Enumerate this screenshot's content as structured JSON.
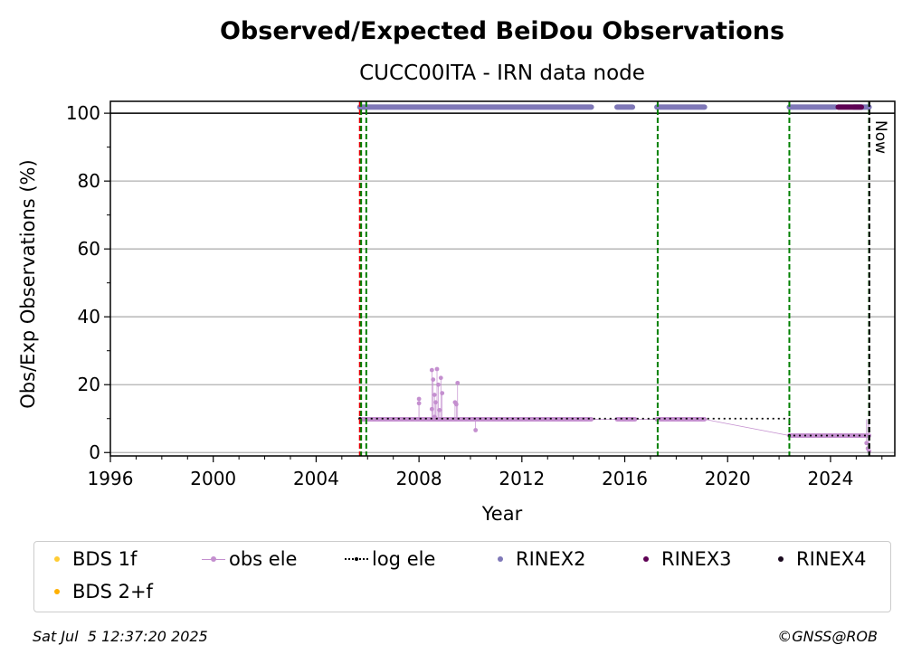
{
  "chart_data": {
    "type": "scatter",
    "title": "Observed/Expected BeiDou Observations",
    "subtitle": "CUCC00ITA - IRN data node",
    "xlabel": "Year",
    "ylabel": "Obs/Exp Observations (%)",
    "xlim": [
      1996.0,
      2026.5
    ],
    "ylim": [
      -1,
      103.5
    ],
    "xticks": [
      1996,
      2000,
      2004,
      2008,
      2012,
      2016,
      2020,
      2024
    ],
    "yticks": [
      0,
      20,
      40,
      60,
      80,
      100
    ],
    "grid": "horizontal",
    "now_label": "Now",
    "now_year": 2025.51,
    "reference_line_y": 100,
    "red_vline_year": 2005.7,
    "green_vlines_years": [
      2005.75,
      2005.95,
      2017.28,
      2022.4,
      2025.5
    ],
    "rinex_band_y": 101.8,
    "rinex2_segments": [
      [
        2005.7,
        2014.7
      ],
      [
        2015.7,
        2016.3
      ],
      [
        2017.25,
        2019.1
      ],
      [
        2022.4,
        2024.2
      ],
      [
        2024.9,
        2025.5
      ]
    ],
    "rinex3_segments": [
      [
        2024.3,
        2025.2
      ]
    ],
    "obs_ele_segments": [
      {
        "from": 2005.75,
        "to": 2014.7,
        "y": 9.8
      },
      {
        "from": 2015.7,
        "to": 2016.4,
        "y": 9.8
      },
      {
        "from": 2017.25,
        "to": 2019.1,
        "y": 9.8
      },
      {
        "from": 2022.4,
        "to": 2025.5,
        "y": 5.0
      }
    ],
    "obs_ele_points": [
      {
        "x": 2008.0,
        "y": 15.8
      },
      {
        "x": 2008.0,
        "y": 14.5
      },
      {
        "x": 2008.5,
        "y": 24.3
      },
      {
        "x": 2008.55,
        "y": 21.5
      },
      {
        "x": 2008.6,
        "y": 17.0
      },
      {
        "x": 2008.65,
        "y": 14.8
      },
      {
        "x": 2008.7,
        "y": 24.6
      },
      {
        "x": 2008.75,
        "y": 20.0
      },
      {
        "x": 2008.8,
        "y": 12.5
      },
      {
        "x": 2008.85,
        "y": 22.0
      },
      {
        "x": 2008.9,
        "y": 17.5
      },
      {
        "x": 2008.5,
        "y": 12.8
      },
      {
        "x": 2008.6,
        "y": 10.5
      },
      {
        "x": 2009.4,
        "y": 14.8
      },
      {
        "x": 2009.5,
        "y": 20.5
      },
      {
        "x": 2009.45,
        "y": 14.2
      },
      {
        "x": 2010.2,
        "y": 6.6
      },
      {
        "x": 2025.4,
        "y": 2.8
      },
      {
        "x": 2025.45,
        "y": 1.2
      },
      {
        "x": 2025.5,
        "y": 0.4
      }
    ],
    "log_ele_steps": [
      {
        "from": 2005.7,
        "to": 2022.4,
        "y": 10
      },
      {
        "from": 2022.4,
        "to": 2025.5,
        "y": 5
      }
    ],
    "legend": [
      {
        "label": "BDS 1f",
        "color": "#ffcc33",
        "style": "dot"
      },
      {
        "label": "obs ele",
        "color": "#c48fcf",
        "style": "line-dot"
      },
      {
        "label": "log ele",
        "color": "#000000",
        "style": "dotted-dot"
      },
      {
        "label": "RINEX2",
        "color": "#7f78b8",
        "style": "dot"
      },
      {
        "label": "RINEX3",
        "color": "#5e0154",
        "style": "dot"
      },
      {
        "label": "RINEX4",
        "color": "#1a0a1e",
        "style": "dot"
      },
      {
        "label": "BDS 2+f",
        "color": "#ffb000",
        "style": "dot"
      }
    ],
    "colors": {
      "rinex2": "#7f78b8",
      "rinex3": "#5e0154",
      "obs_ele": "#c48fcf",
      "log_ele": "#000000",
      "grid": "#b0b0b0",
      "green_line": "#008000",
      "red_line": "#dd0000"
    }
  },
  "footer": {
    "timestamp": "Sat Jul  5 12:37:20 2025",
    "credit": "©GNSS@ROB"
  }
}
